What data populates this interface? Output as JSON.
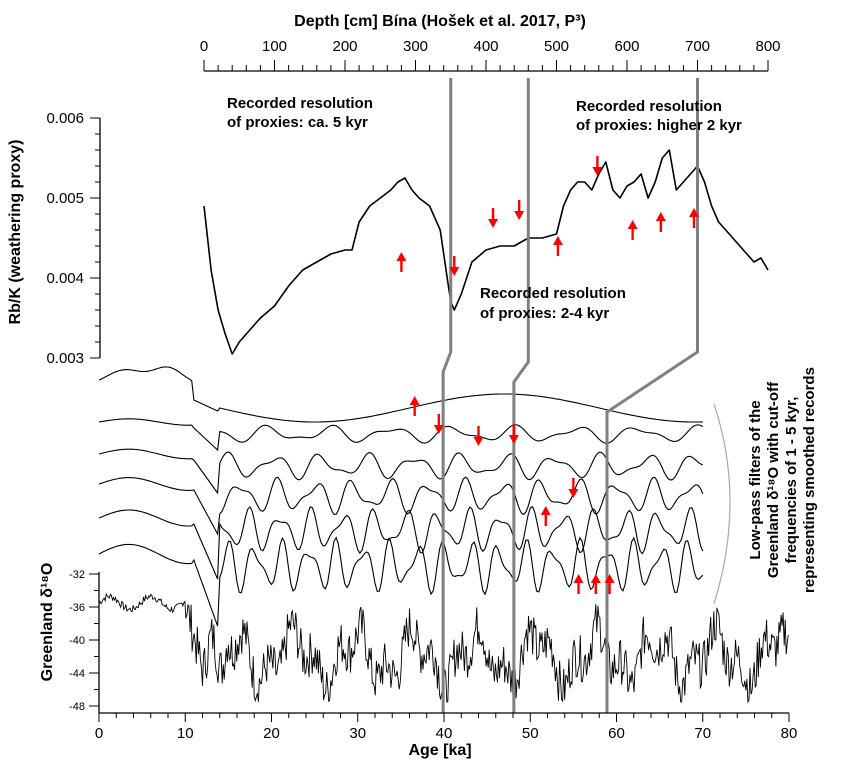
{
  "chart_data": {
    "type": "line",
    "x_axis": {
      "label": "Age [ka]",
      "range": [
        0,
        80
      ],
      "ticks": [
        "0",
        "10",
        "20",
        "30",
        "40",
        "50",
        "60",
        "70",
        "80"
      ]
    },
    "top_axis": {
      "label": "Depth [cm] Bína (Hošek et al. 2017, P³)",
      "range": [
        0,
        800
      ],
      "ticks": [
        "0",
        "100",
        "200",
        "300",
        "400",
        "500",
        "600",
        "700",
        "800"
      ]
    },
    "rbk_axis": {
      "label": "Rb/K (weathering proxy)",
      "range": [
        0.003,
        0.006
      ],
      "ticks": [
        "0.003",
        "0.004",
        "0.005",
        "0.006"
      ]
    },
    "d18o_axis": {
      "label": "Greenland δ¹⁸O",
      "range": [
        -48,
        -32
      ],
      "ticks": [
        "-32",
        "-36",
        "-40",
        "-44",
        "-48"
      ]
    },
    "filters_label": [
      "Low-pass filters of the",
      "Greenland δ¹⁸O with cut-off",
      "frequencies of 1 - 5 kyr,",
      "representing smoothed records"
    ],
    "annotations": [
      {
        "lines": [
          "Recorded resolution",
          "of proxies: ca. 5 kyr"
        ]
      },
      {
        "lines": [
          "Recorded resolution",
          "of proxies: higher 2 kyr"
        ]
      },
      {
        "lines": [
          "Recorded resolution",
          "of proxies: 2-4 kyr"
        ]
      }
    ],
    "series": [
      {
        "id": "rbk",
        "x_depth": [
          0,
          10,
          20,
          30,
          40,
          50,
          60,
          70,
          80,
          100,
          120,
          140,
          160,
          180,
          200,
          210,
          220,
          235,
          250,
          265,
          275,
          285,
          295,
          305,
          320,
          335,
          345,
          350,
          355,
          365,
          380,
          400,
          420,
          440,
          460,
          480,
          500,
          510,
          520,
          530,
          540,
          550,
          560,
          570,
          580,
          590,
          600,
          610,
          620,
          630,
          640,
          650,
          660,
          670,
          680,
          690,
          700,
          710,
          720,
          730,
          740,
          750,
          760,
          770,
          780,
          790,
          800
        ],
        "y": [
          0.0049,
          0.0041,
          0.0036,
          0.0033,
          0.00305,
          0.0032,
          0.0033,
          0.0034,
          0.0035,
          0.00365,
          0.0039,
          0.0041,
          0.0042,
          0.0043,
          0.00435,
          0.00435,
          0.0047,
          0.0049,
          0.005,
          0.0051,
          0.0052,
          0.00525,
          0.0051,
          0.005,
          0.0049,
          0.0046,
          0.004,
          0.0037,
          0.0036,
          0.0038,
          0.0042,
          0.00435,
          0.0044,
          0.0044,
          0.0045,
          0.0045,
          0.00455,
          0.0049,
          0.0051,
          0.0052,
          0.0052,
          0.0051,
          0.0053,
          0.00545,
          0.0051,
          0.005,
          0.00515,
          0.0052,
          0.0053,
          0.005,
          0.0052,
          0.0055,
          0.0056,
          0.0051,
          0.0052,
          0.0053,
          0.0054,
          0.0052,
          0.0049,
          0.0047,
          0.0046,
          0.0045,
          0.0044,
          0.0043,
          0.0042,
          0.00425,
          0.0041
        ]
      },
      {
        "id": "filter-1"
      },
      {
        "id": "filter-2"
      },
      {
        "id": "filter-3"
      },
      {
        "id": "filter-4"
      },
      {
        "id": "filter-5"
      },
      {
        "id": "greenland-d18o"
      }
    ],
    "proxy_resolution_link_depths": [
      350,
      460,
      700
    ],
    "guide_ages": [
      39.9,
      48.1,
      58.9
    ],
    "arrows": {
      "rbk": [
        {
          "depth": 280,
          "y": 0.0042,
          "dir": "up"
        },
        {
          "depth": 355,
          "y": 0.00415,
          "dir": "down"
        },
        {
          "depth": 410,
          "y": 0.00475,
          "dir": "down"
        },
        {
          "depth": 447,
          "y": 0.00485,
          "dir": "down"
        },
        {
          "depth": 502,
          "y": 0.0044,
          "dir": "up"
        },
        {
          "depth": 558,
          "y": 0.0054,
          "dir": "down"
        },
        {
          "depth": 608,
          "y": 0.0046,
          "dir": "up"
        },
        {
          "depth": 648,
          "y": 0.0047,
          "dir": "up"
        },
        {
          "depth": 695,
          "y": 0.00475,
          "dir": "up"
        }
      ],
      "filters": [
        {
          "age": 36.6,
          "track": 0,
          "offset": 10,
          "dir": "up"
        },
        {
          "age": 39.4,
          "track": 2,
          "offset": 30,
          "dir": "down"
        },
        {
          "age": 44.0,
          "track": 2,
          "offset": 18,
          "dir": "down"
        },
        {
          "age": 48.1,
          "track": 2,
          "offset": 20,
          "dir": "down"
        },
        {
          "age": 51.8,
          "track": 3,
          "offset": 30,
          "dir": "up"
        },
        {
          "age": 55.0,
          "track": 4,
          "offset": 30,
          "dir": "down"
        },
        {
          "age": 55.6,
          "track": 5,
          "offset": 28,
          "dir": "up"
        },
        {
          "age": 57.6,
          "track": 5,
          "offset": 28,
          "dir": "up"
        },
        {
          "age": 59.2,
          "track": 5,
          "offset": 28,
          "dir": "up"
        }
      ]
    }
  }
}
